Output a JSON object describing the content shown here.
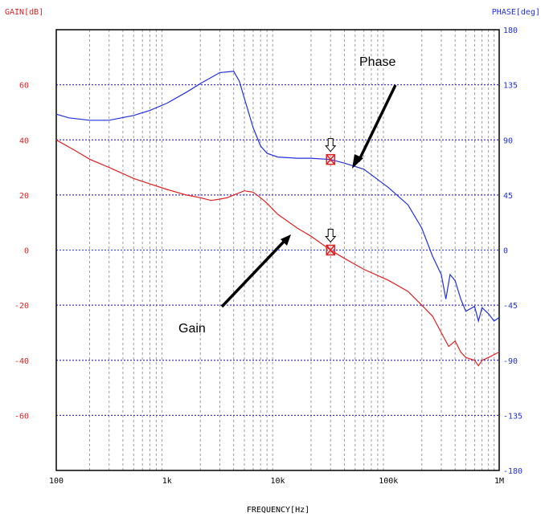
{
  "chart_data": {
    "type": "line",
    "title": "",
    "xlabel": "FREQUENCY[Hz]",
    "ylabel_left": "GAIN[dB]",
    "ylabel_right": "PHASE[deg]",
    "xscale": "log",
    "xlim": [
      100,
      1000000
    ],
    "ylim_gain": [
      -80,
      80
    ],
    "ylim_phase": [
      -180,
      180
    ],
    "x_ticks": [
      {
        "value": 100,
        "label": "100"
      },
      {
        "value": 1000,
        "label": "1k"
      },
      {
        "value": 10000,
        "label": "10k"
      },
      {
        "value": 100000,
        "label": "100k"
      },
      {
        "value": 1000000,
        "label": "1M"
      }
    ],
    "gain_ticks": [
      {
        "value": 60,
        "label": "60"
      },
      {
        "value": 40,
        "label": "40"
      },
      {
        "value": 20,
        "label": "20"
      },
      {
        "value": 0,
        "label": "0"
      },
      {
        "value": -20,
        "label": "-20"
      },
      {
        "value": -40,
        "label": "-40"
      },
      {
        "value": -60,
        "label": "-60"
      }
    ],
    "phase_ticks": [
      {
        "value": 180,
        "label": "180"
      },
      {
        "value": 135,
        "label": "135"
      },
      {
        "value": 90,
        "label": "90"
      },
      {
        "value": 45,
        "label": "45"
      },
      {
        "value": 0,
        "label": "0"
      },
      {
        "value": -45,
        "label": "-45"
      },
      {
        "value": -90,
        "label": "-90"
      },
      {
        "value": -135,
        "label": "-135"
      },
      {
        "value": -180,
        "label": "-180"
      }
    ],
    "series": [
      {
        "name": "Gain",
        "axis": "gain",
        "color": "#e02020",
        "points": [
          [
            100,
            40
          ],
          [
            150,
            36
          ],
          [
            200,
            33
          ],
          [
            300,
            30
          ],
          [
            500,
            26
          ],
          [
            700,
            24
          ],
          [
            1000,
            22
          ],
          [
            1500,
            20
          ],
          [
            2000,
            19
          ],
          [
            2500,
            18
          ],
          [
            3000,
            18.5
          ],
          [
            3500,
            19
          ],
          [
            4000,
            20
          ],
          [
            5000,
            21.5
          ],
          [
            6000,
            21
          ],
          [
            7000,
            19
          ],
          [
            8000,
            17
          ],
          [
            10000,
            13
          ],
          [
            15000,
            8
          ],
          [
            20000,
            5
          ],
          [
            30000,
            0
          ],
          [
            40000,
            -3
          ],
          [
            60000,
            -7
          ],
          [
            100000,
            -11
          ],
          [
            150000,
            -15
          ],
          [
            200000,
            -20
          ],
          [
            250000,
            -24
          ],
          [
            300000,
            -30
          ],
          [
            350000,
            -35
          ],
          [
            400000,
            -33
          ],
          [
            450000,
            -37
          ],
          [
            500000,
            -39
          ],
          [
            600000,
            -40
          ],
          [
            650000,
            -42
          ],
          [
            700000,
            -40
          ],
          [
            800000,
            -39
          ],
          [
            1000000,
            -37
          ]
        ]
      },
      {
        "name": "Phase",
        "axis": "phase",
        "color": "#2030e0",
        "points": [
          [
            100,
            111
          ],
          [
            130,
            108
          ],
          [
            200,
            106
          ],
          [
            300,
            106
          ],
          [
            500,
            110
          ],
          [
            700,
            114
          ],
          [
            1000,
            120
          ],
          [
            1500,
            129
          ],
          [
            2000,
            136
          ],
          [
            3000,
            145
          ],
          [
            4000,
            146
          ],
          [
            4500,
            138
          ],
          [
            5000,
            124
          ],
          [
            6000,
            100
          ],
          [
            7000,
            85
          ],
          [
            8000,
            79
          ],
          [
            10000,
            76
          ],
          [
            15000,
            75
          ],
          [
            20000,
            75
          ],
          [
            30000,
            74
          ],
          [
            40000,
            71
          ],
          [
            60000,
            66
          ],
          [
            100000,
            51
          ],
          [
            150000,
            37
          ],
          [
            200000,
            18
          ],
          [
            250000,
            -5
          ],
          [
            300000,
            -20
          ],
          [
            330000,
            -40
          ],
          [
            360000,
            -20
          ],
          [
            400000,
            -25
          ],
          [
            450000,
            -40
          ],
          [
            500000,
            -50
          ],
          [
            600000,
            -46
          ],
          [
            650000,
            -58
          ],
          [
            700000,
            -47
          ],
          [
            800000,
            -52
          ],
          [
            900000,
            -58
          ],
          [
            1000000,
            -55
          ]
        ]
      }
    ],
    "markers": [
      {
        "series": "Gain",
        "x": 30000,
        "y": 0
      },
      {
        "series": "Phase",
        "x": 30000,
        "y": 74
      }
    ],
    "annotations": [
      {
        "text": "Phase",
        "arrow_to": "Phase"
      },
      {
        "text": "Gain",
        "arrow_to": "Gain"
      }
    ],
    "grid": true
  }
}
